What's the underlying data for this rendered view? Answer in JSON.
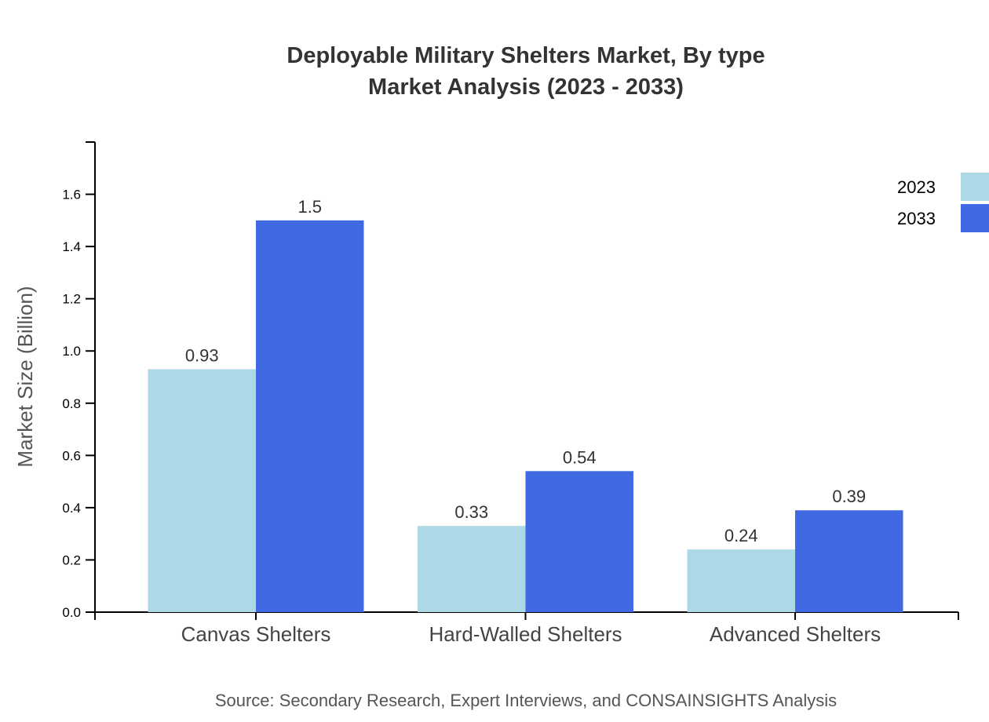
{
  "chart_data": {
    "type": "bar",
    "title": "Deployable Military Shelters Market, By type",
    "subtitle": "Market Analysis (2023 - 2033)",
    "ylabel": "Market Size (Billion)",
    "xlabel": "",
    "ylim": [
      0,
      1.8
    ],
    "yticks": [
      "0.0",
      "0.2",
      "0.4",
      "0.6",
      "0.8",
      "1.0",
      "1.2",
      "1.4",
      "1.6"
    ],
    "categories": [
      "Canvas Shelters",
      "Hard-Walled Shelters",
      "Advanced Shelters"
    ],
    "series": [
      {
        "name": "2023",
        "color": "#add8e6",
        "values": [
          0.93,
          0.33,
          0.24
        ],
        "labels": [
          "0.93",
          "0.33",
          "0.24"
        ]
      },
      {
        "name": "2033",
        "color": "#4169e1",
        "values": [
          1.5,
          0.54,
          0.39
        ],
        "labels": [
          "1.5",
          "0.54",
          "0.39"
        ]
      }
    ],
    "legend": "top-right",
    "grid": false
  },
  "source": "Source: Secondary Research, Expert Interviews, and CONSAINSIGHTS Analysis"
}
